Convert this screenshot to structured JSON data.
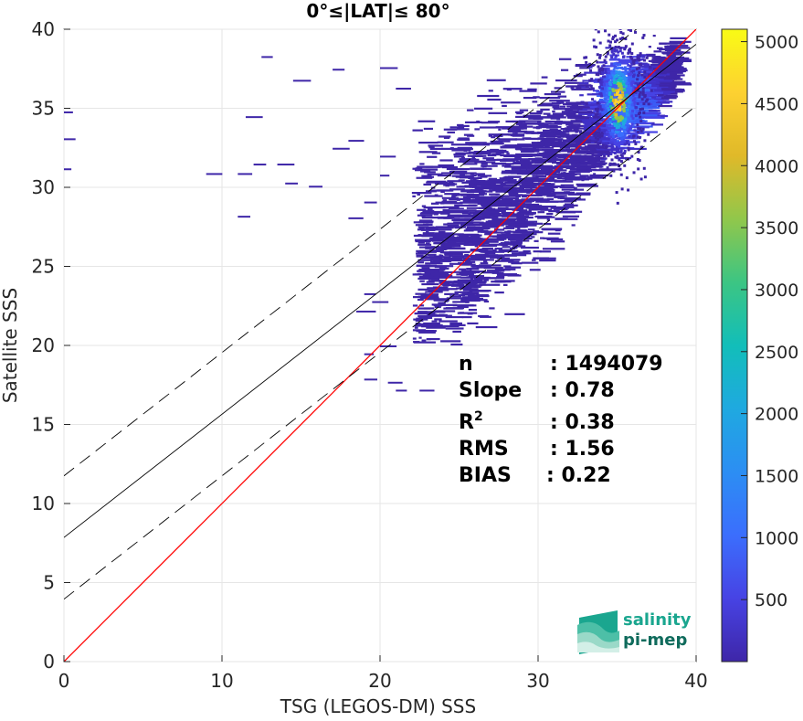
{
  "chart_data": {
    "type": "heatmap",
    "title": "0°≤|LAT|≤ 80°",
    "xlabel": "TSG (LEGOS-DM) SSS",
    "ylabel": "Satellite SSS",
    "xlim": [
      0,
      40
    ],
    "ylim": [
      0,
      40
    ],
    "xticks": [
      "0",
      "10",
      "20",
      "30",
      "40"
    ],
    "yticks": [
      "0",
      "5",
      "10",
      "15",
      "20",
      "25",
      "30",
      "35",
      "40"
    ],
    "grid": true,
    "colorbar": {
      "range": [
        0,
        5100
      ],
      "ticks": [
        "500",
        "1000",
        "1500",
        "2000",
        "2500",
        "3000",
        "3500",
        "4000",
        "4500",
        "5000"
      ],
      "colormap": "parula"
    },
    "lines": [
      {
        "name": "one-to-one",
        "color": "#ff0000",
        "intercept": 0,
        "slope": 1
      },
      {
        "name": "regression",
        "color": "#000000",
        "style": "solid",
        "intercept": 7.85,
        "slope": 0.78
      },
      {
        "name": "upper-band",
        "color": "#000000",
        "style": "dashed",
        "intercept": 11.75,
        "slope": 0.78
      },
      {
        "name": "lower-band",
        "color": "#000000",
        "style": "dashed",
        "intercept": 3.95,
        "slope": 0.78
      }
    ],
    "density_core": {
      "x": 35.0,
      "y": 35.5,
      "peak": 5000
    },
    "stats": [
      {
        "label": "n",
        "value": ": 1494079"
      },
      {
        "label": "Slope",
        "value": ": 0.78"
      },
      {
        "label": "R",
        "sup": "2",
        "value": ": 0.38"
      },
      {
        "label": "RMS",
        "value": ": 1.56"
      },
      {
        "label": "BIAS",
        "value": ": 0.22"
      }
    ]
  },
  "logo": {
    "line1": "salinity",
    "line2": "pi-mep"
  }
}
